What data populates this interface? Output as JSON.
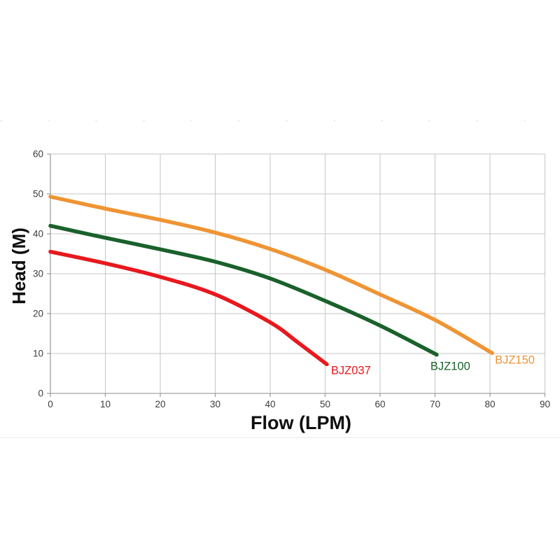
{
  "page": {
    "background": "#ffffff"
  },
  "chart_data": {
    "type": "line",
    "title": "",
    "xlabel": "Flow (LPM)",
    "ylabel": "Head (M)",
    "xlim": [
      0,
      90
    ],
    "ylim": [
      0,
      60
    ],
    "x_ticks": [
      0,
      10,
      20,
      30,
      40,
      50,
      60,
      70,
      80,
      90
    ],
    "y_ticks": [
      0,
      10,
      20,
      30,
      40,
      50,
      60
    ],
    "grid": true,
    "legend_position": "inline-end-of-curve",
    "colors": {
      "grid": "#c6c6c6",
      "axis": "#a2a2a2",
      "tick_text": "#3c3c3c",
      "axis_title_text": "#0f0f0f"
    },
    "series": [
      {
        "name": "BJZ037",
        "color": "#e8181d",
        "points": [
          [
            0,
            35.5
          ],
          [
            10,
            32.6
          ],
          [
            20,
            29.2
          ],
          [
            30,
            24.8
          ],
          [
            40,
            17.8
          ],
          [
            45,
            12.8
          ],
          [
            50.3,
            7.3
          ]
        ]
      },
      {
        "name": "BJZ100",
        "color": "#1a612b",
        "points": [
          [
            0,
            42.0
          ],
          [
            10,
            39.0
          ],
          [
            20,
            36.1
          ],
          [
            30,
            33.0
          ],
          [
            40,
            28.8
          ],
          [
            50,
            23.2
          ],
          [
            60,
            17.0
          ],
          [
            70.3,
            9.7
          ]
        ]
      },
      {
        "name": "BJZ150",
        "color": "#ef9434",
        "points": [
          [
            0,
            49.3
          ],
          [
            10,
            46.3
          ],
          [
            20,
            43.5
          ],
          [
            30,
            40.3
          ],
          [
            40,
            36.2
          ],
          [
            50,
            31.0
          ],
          [
            60,
            24.8
          ],
          [
            70,
            18.4
          ],
          [
            80.4,
            10.1
          ]
        ]
      }
    ]
  }
}
